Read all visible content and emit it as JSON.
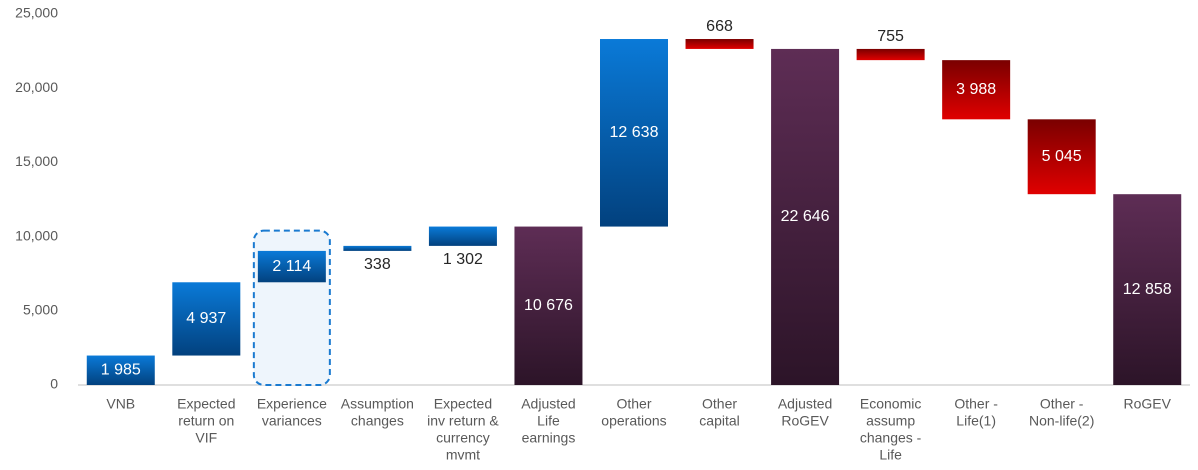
{
  "chart_data": {
    "type": "waterfall",
    "categories": [
      [
        "VNB"
      ],
      [
        "Expected",
        "return on",
        "VIF"
      ],
      [
        "Experience",
        "variances"
      ],
      [
        "Assumption",
        "changes"
      ],
      [
        "Expected",
        "inv return &",
        "currency",
        "mvmt"
      ],
      [
        "Adjusted",
        "Life",
        "earnings"
      ],
      [
        "Other",
        "operations"
      ],
      [
        "Other",
        "capital"
      ],
      [
        "Adjusted",
        "RoGEV"
      ],
      [
        "Economic",
        "assump",
        "changes -",
        "Life"
      ],
      [
        "Other -",
        "Life(1)"
      ],
      [
        "Other -",
        "Non-life(2)"
      ],
      [
        "RoGEV"
      ]
    ],
    "values": [
      1985,
      4937,
      2114,
      338,
      1302,
      10676,
      12638,
      -668,
      22646,
      -755,
      -3988,
      -5045,
      12858
    ],
    "value_labels": [
      "1 985",
      "4 937",
      "2 114",
      "338",
      "1 302",
      "10 676",
      "12 638",
      "668",
      "22 646",
      "755",
      "3 988",
      "5 045",
      "12 858"
    ],
    "measures": [
      "relative",
      "relative",
      "relative",
      "relative",
      "relative",
      "total",
      "relative",
      "relative",
      "total",
      "relative",
      "relative",
      "relative",
      "total"
    ],
    "colors": {
      "increase": "#0a72cc",
      "decrease": "#d40000",
      "total": "#4a2242"
    },
    "ylim": [
      0,
      25000
    ],
    "yticks": [
      0,
      {
        "value": 5000,
        "label": "5,000"
      },
      {
        "value": 10000,
        "label": "10,000"
      },
      {
        "value": 15000,
        "label": "15,000"
      },
      {
        "value": 20000,
        "label": "20,000"
      },
      {
        "value": 25000,
        "label": "25,000"
      }
    ],
    "grid": false
  }
}
